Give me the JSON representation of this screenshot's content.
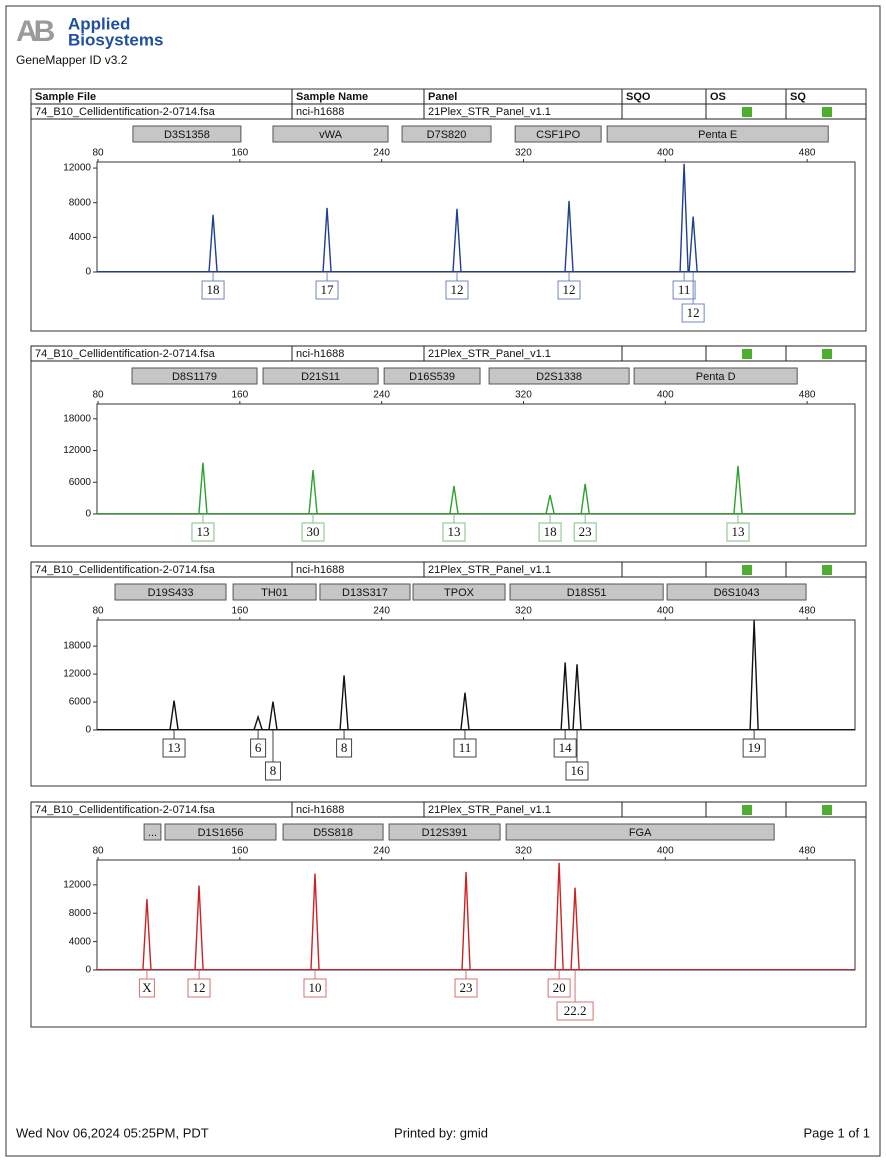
{
  "header": {
    "logo_mark": "AB",
    "brand_line1": "Applied",
    "brand_line2": "Biosystems",
    "software": "GeneMapper ID v3.2"
  },
  "table_header": [
    "Sample File",
    "Sample Name",
    "Panel",
    "SQO",
    "OS",
    "SQ"
  ],
  "chart_data": [
    {
      "type": "electropherogram",
      "sample_file": "74_B10_Cellidentification-2-0714.fsa",
      "sample_name": "nci-h1688",
      "panel": "21Plex_STR_Panel_v1.1",
      "color": "#1f3f8f",
      "markers": [
        {
          "name": "D3S1358",
          "start": 99.7,
          "end": 160.6
        },
        {
          "name": "vWA",
          "start": 178.7,
          "end": 243.6
        },
        {
          "name": "D7S820",
          "start": 251.5,
          "end": 301.7
        },
        {
          "name": "CSF1PO",
          "start": 315.3,
          "end": 363.8
        },
        {
          "name": "Penta E",
          "start": 367.2,
          "end": 491.9
        }
      ],
      "x": [
        144.9,
        209.2,
        282.5,
        345.7,
        410.6,
        415.7
      ],
      "values": [
        6600,
        7400,
        7300,
        8200,
        12500,
        6400
      ],
      "labels": [
        "18",
        "17",
        "12",
        "12",
        "11",
        "12"
      ],
      "xlim": [
        80,
        507
      ],
      "xticks": [
        80,
        160,
        240,
        320,
        400,
        480
      ],
      "ylim": [
        0,
        12700
      ],
      "yticks": [
        0,
        4000,
        8000,
        12000
      ]
    },
    {
      "type": "electropherogram",
      "sample_file": "74_B10_Cellidentification-2-0714.fsa",
      "sample_name": "nci-h1688",
      "panel": "21Plex_STR_Panel_v1.1",
      "color": "#2ea02e",
      "markers": [
        {
          "name": "D8S1179",
          "start": 99.2,
          "end": 169.7
        },
        {
          "name": "D21S11",
          "start": 173.1,
          "end": 238
        },
        {
          "name": "D16S539",
          "start": 241.4,
          "end": 295.5
        },
        {
          "name": "D2S1338",
          "start": 300.6,
          "end": 379.6
        },
        {
          "name": "Penta D",
          "start": 382.4,
          "end": 474.4
        }
      ],
      "x": [
        139.2,
        201.3,
        280.8,
        335,
        354.8,
        441
      ],
      "values": [
        9700,
        8300,
        5300,
        3600,
        5700,
        9100
      ],
      "labels": [
        "13",
        "30",
        "13",
        "18",
        "23",
        "13"
      ],
      "xlim": [
        80,
        507
      ],
      "xticks": [
        80,
        160,
        240,
        320,
        400,
        480
      ],
      "ylim": [
        0,
        20800
      ],
      "yticks": [
        0,
        6000,
        12000,
        18000
      ]
    },
    {
      "type": "electropherogram",
      "sample_file": "74_B10_Cellidentification-2-0714.fsa",
      "sample_name": "nci-h1688",
      "panel": "21Plex_STR_Panel_v1.1",
      "color": "#111111",
      "markers": [
        {
          "name": "D19S433",
          "start": 89.6,
          "end": 152.2
        },
        {
          "name": "TH01",
          "start": 156.2,
          "end": 203
        },
        {
          "name": "D13S317",
          "start": 205.2,
          "end": 256
        },
        {
          "name": "TPOX",
          "start": 257.7,
          "end": 309.6
        },
        {
          "name": "D18S51",
          "start": 312.4,
          "end": 398.8
        },
        {
          "name": "D6S1043",
          "start": 401,
          "end": 479.4
        }
      ],
      "x": [
        122.9,
        170.3,
        178.7,
        218.8,
        287,
        343.5,
        350.2,
        450.1
      ],
      "values": [
        6300,
        2800,
        6100,
        11700,
        8000,
        14500,
        14100,
        23500
      ],
      "labels": [
        "13",
        "6",
        "8",
        "8",
        "11",
        "14",
        "16",
        "19"
      ],
      "xlim": [
        80,
        507
      ],
      "xticks": [
        80,
        160,
        240,
        320,
        400,
        480
      ],
      "ylim": [
        0,
        23600
      ],
      "yticks": [
        0,
        6000,
        12000,
        18000
      ]
    },
    {
      "type": "electropherogram",
      "sample_file": "74_B10_Cellidentification-2-0714.fsa",
      "sample_name": "nci-h1688",
      "panel": "21Plex_STR_Panel_v1.1",
      "color": "#cc2222",
      "markers": [
        {
          "name": "...",
          "start": 106,
          "end": 115.5
        },
        {
          "name": "D1S1656",
          "start": 117.8,
          "end": 180.4
        },
        {
          "name": "D5S818",
          "start": 184.4,
          "end": 240.8
        },
        {
          "name": "D12S391",
          "start": 244.2,
          "end": 306.8
        },
        {
          "name": "FGA",
          "start": 310.2,
          "end": 461.4
        }
      ],
      "x": [
        107.6,
        137,
        202.4,
        287.6,
        340.1,
        349.1
      ],
      "values": [
        10000,
        11900,
        13600,
        13800,
        15100,
        11600
      ],
      "labels": [
        "X",
        "12",
        "10",
        "23",
        "20",
        "22.2"
      ],
      "xlim": [
        80,
        507
      ],
      "xticks": [
        80,
        160,
        240,
        320,
        400,
        480
      ],
      "ylim": [
        0,
        15500
      ],
      "yticks": [
        0,
        4000,
        8000,
        12000
      ]
    }
  ],
  "footer": {
    "date": "Wed Nov 06,2024 05:25PM, PDT",
    "printed_by": "Printed by: gmid",
    "page": "Page 1 of 1"
  }
}
